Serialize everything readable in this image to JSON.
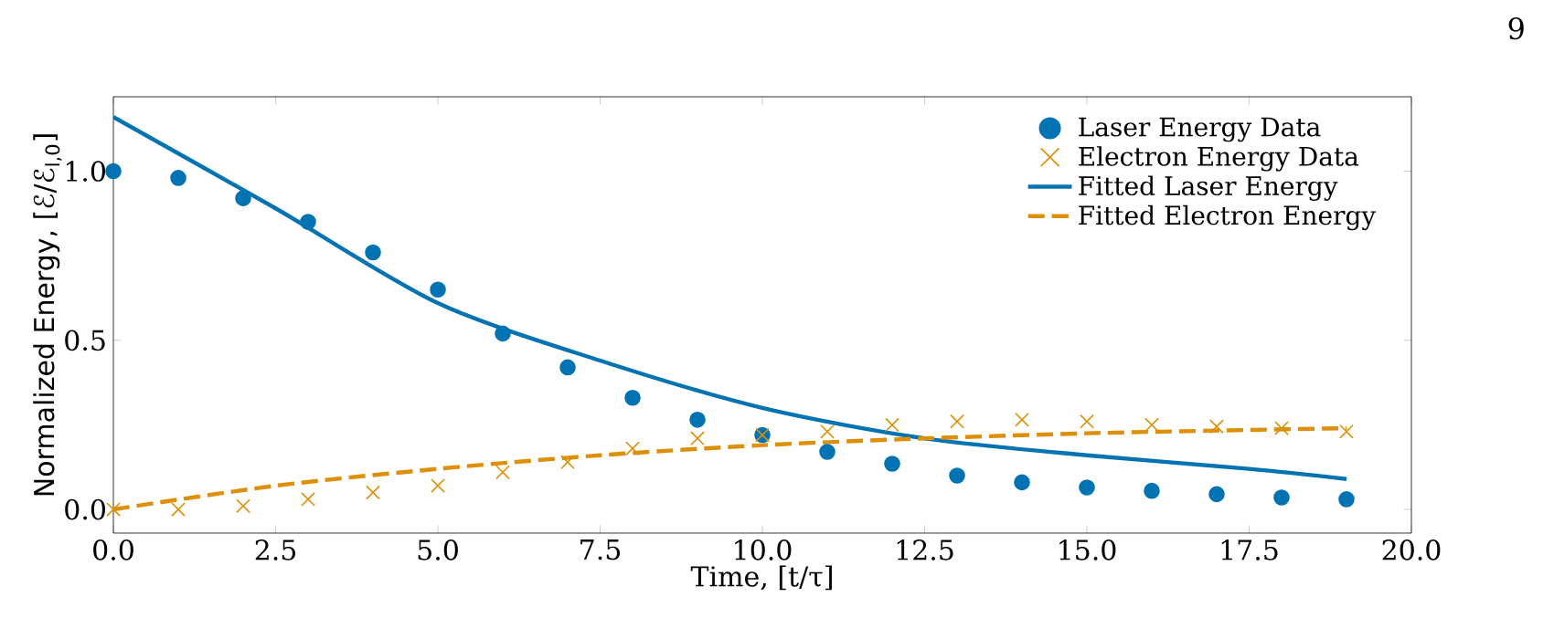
{
  "chart_data": {
    "type": "scatter",
    "xlabel": "Time, [t/τ]",
    "ylabel": "Normalized Energy, [ℰ/ℰ$_{l,0}$]",
    "annotations": [
      "9"
    ],
    "xlim": [
      0,
      20
    ],
    "ylim": [
      -0.07,
      1.22
    ],
    "xticks": [
      {
        "value": 0,
        "label": "0.0"
      },
      {
        "value": 2.5,
        "label": "2.5"
      },
      {
        "value": 5,
        "label": "5.0"
      },
      {
        "value": 7.5,
        "label": "7.5"
      },
      {
        "value": 10,
        "label": "10.0"
      },
      {
        "value": 12.5,
        "label": "12.5"
      },
      {
        "value": 15,
        "label": "15.0"
      },
      {
        "value": 17.5,
        "label": "17.5"
      },
      {
        "value": 20,
        "label": "20.0"
      }
    ],
    "yticks": [
      {
        "value": 0,
        "label": "0.0"
      },
      {
        "value": 0.5,
        "label": "0.5"
      },
      {
        "value": 1,
        "label": "1.0"
      }
    ],
    "legend": "top right",
    "grid": false,
    "series": [
      {
        "name": "Laser Energy Data",
        "marker": "circle",
        "color": "#0173b2",
        "x": [
          0,
          1,
          2,
          3,
          4,
          5,
          6,
          7,
          8,
          9,
          10,
          11,
          12,
          13,
          14,
          15,
          16,
          17,
          18,
          19
        ],
        "values": [
          1.0,
          0.98,
          0.92,
          0.85,
          0.76,
          0.65,
          0.52,
          0.42,
          0.33,
          0.265,
          0.22,
          0.17,
          0.135,
          0.1,
          0.08,
          0.065,
          0.055,
          0.045,
          0.035,
          0.03
        ]
      },
      {
        "name": "Electron Energy Data",
        "marker": "cross",
        "color": "#de8f05",
        "x": [
          0,
          1,
          2,
          3,
          4,
          5,
          6,
          7,
          8,
          9,
          10,
          11,
          12,
          13,
          14,
          15,
          16,
          17,
          18,
          19
        ],
        "values": [
          0.0,
          0.0,
          0.01,
          0.03,
          0.05,
          0.07,
          0.11,
          0.14,
          0.18,
          0.21,
          0.22,
          0.23,
          0.25,
          0.26,
          0.265,
          0.26,
          0.25,
          0.245,
          0.24,
          0.23
        ]
      },
      {
        "name": "Fitted Laser Energy",
        "type": "line",
        "line_style": "solid",
        "color": "#0173b2",
        "x": [
          0,
          2.5,
          5,
          7.5,
          10,
          12.5,
          15,
          17.5,
          19
        ],
        "values": [
          1.16,
          0.89,
          0.61,
          0.44,
          0.3,
          0.21,
          0.16,
          0.12,
          0.09
        ]
      },
      {
        "name": "Fitted Electron Energy",
        "type": "line",
        "line_style": "dashed",
        "color": "#de8f05",
        "x": [
          0,
          2.5,
          5,
          7.5,
          10,
          12.5,
          15,
          17.5,
          19
        ],
        "values": [
          0.0,
          0.07,
          0.12,
          0.16,
          0.19,
          0.21,
          0.225,
          0.235,
          0.24
        ]
      }
    ]
  }
}
